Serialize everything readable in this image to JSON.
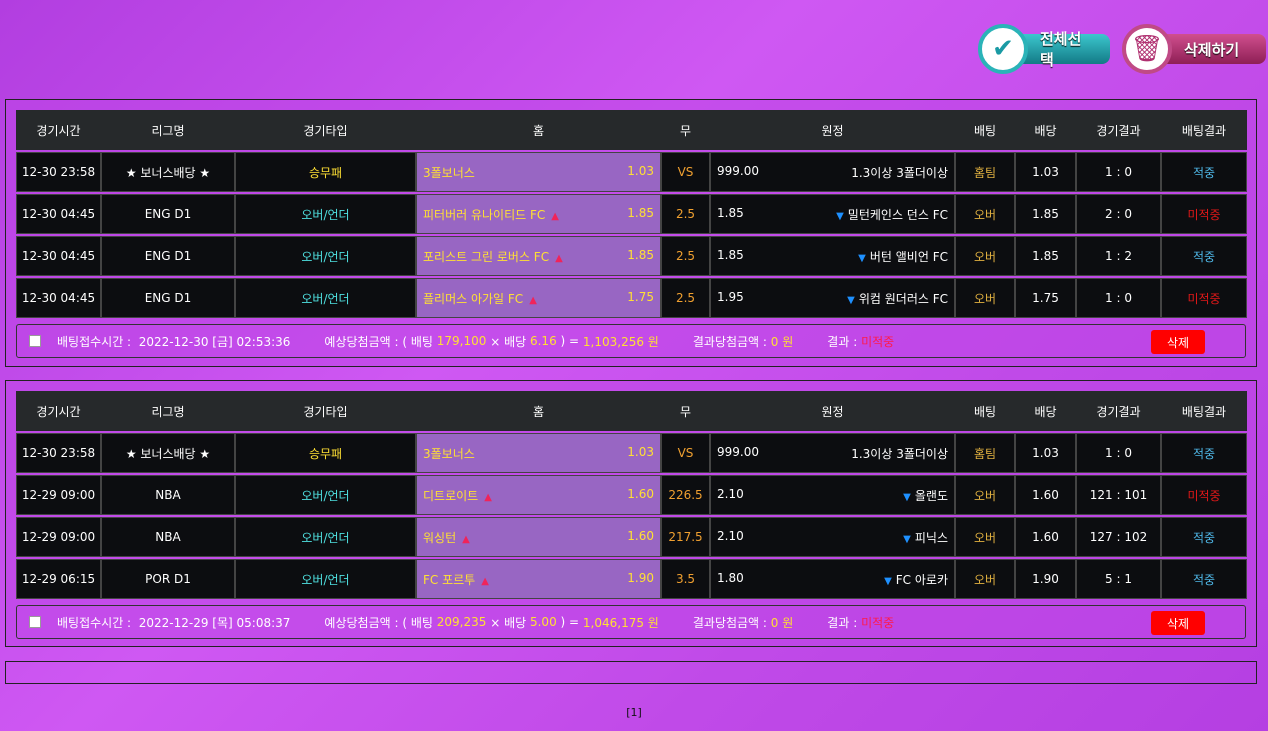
{
  "top_buttons": {
    "select_all": "전체선택",
    "delete_all": "삭제하기",
    "select_icon": "check-icon",
    "delete_icon": "trash-icon"
  },
  "headers": [
    "경기시간",
    "리그명",
    "경기타입",
    "홈",
    "무",
    "원정",
    "배팅",
    "배당",
    "경기결과",
    "배팅결과"
  ],
  "slips": [
    {
      "rows": [
        {
          "time": "12-30 23:58",
          "league": "★ 보너스배당 ★",
          "type": "승무패",
          "home": "3폴보너스",
          "home_odds": "1.03",
          "draw": "VS",
          "away_odds": "999.00",
          "away": "1.3이상 3폴더이상",
          "bet": "홈팀",
          "odds": "1.03",
          "score": "1 : 0",
          "result": "적중",
          "arrows": false
        },
        {
          "time": "12-30 04:45",
          "league": "ENG D1",
          "type": "오버/언더",
          "home": "피터버러 유나이티드 FC",
          "home_odds": "1.85",
          "draw": "2.5",
          "away_odds": "1.85",
          "away": "밀턴케인스 던스 FC",
          "bet": "오버",
          "odds": "1.85",
          "score": "2 : 0",
          "result": "미적중",
          "arrows": true
        },
        {
          "time": "12-30 04:45",
          "league": "ENG D1",
          "type": "오버/언더",
          "home": "포리스트 그린 로버스 FC",
          "home_odds": "1.85",
          "draw": "2.5",
          "away_odds": "1.85",
          "away": "버턴 앨비언 FC",
          "bet": "오버",
          "odds": "1.85",
          "score": "1 : 2",
          "result": "적중",
          "arrows": true
        },
        {
          "time": "12-30 04:45",
          "league": "ENG D1",
          "type": "오버/언더",
          "home": "플리머스 아가일 FC",
          "home_odds": "1.75",
          "draw": "2.5",
          "away_odds": "1.95",
          "away": "위컴 원더러스 FC",
          "bet": "오버",
          "odds": "1.75",
          "score": "1 : 0",
          "result": "미적중",
          "arrows": true
        }
      ],
      "footer": {
        "time_label": "배팅접수시간 :",
        "time": "2022-12-30 [금] 02:53:36",
        "expected_label": "예상당첨금액 : ( 배팅",
        "stake": "179,100",
        "times": "× 배당",
        "total_odds": "6.16",
        "eq": ") =",
        "payout": "1,103,256 원",
        "won_label": "결과당첨금액 :",
        "won": "0 원",
        "result_label": "결과 :",
        "result": "미적중",
        "delete": "삭제"
      }
    },
    {
      "rows": [
        {
          "time": "12-30 23:58",
          "league": "★ 보너스배당 ★",
          "type": "승무패",
          "home": "3폴보너스",
          "home_odds": "1.03",
          "draw": "VS",
          "away_odds": "999.00",
          "away": "1.3이상 3폴더이상",
          "bet": "홈팀",
          "odds": "1.03",
          "score": "1 : 0",
          "result": "적중",
          "arrows": false
        },
        {
          "time": "12-29 09:00",
          "league": "NBA",
          "type": "오버/언더",
          "home": "디트로이트",
          "home_odds": "1.60",
          "draw": "226.5",
          "away_odds": "2.10",
          "away": "올랜도",
          "bet": "오버",
          "odds": "1.60",
          "score": "121 : 101",
          "result": "미적중",
          "arrows": true
        },
        {
          "time": "12-29 09:00",
          "league": "NBA",
          "type": "오버/언더",
          "home": "워싱턴",
          "home_odds": "1.60",
          "draw": "217.5",
          "away_odds": "2.10",
          "away": "피닉스",
          "bet": "오버",
          "odds": "1.60",
          "score": "127 : 102",
          "result": "적중",
          "arrows": true
        },
        {
          "time": "12-29 06:15",
          "league": "POR D1",
          "type": "오버/언더",
          "home": "FC 포르투",
          "home_odds": "1.90",
          "draw": "3.5",
          "away_odds": "1.80",
          "away": "FC 아로카",
          "bet": "오버",
          "odds": "1.90",
          "score": "5 : 1",
          "result": "적중",
          "arrows": true
        }
      ],
      "footer": {
        "time_label": "배팅접수시간 :",
        "time": "2022-12-29 [목] 05:08:37",
        "expected_label": "예상당첨금액 : ( 배팅",
        "stake": "209,235",
        "times": "× 배당",
        "total_odds": "5.00",
        "eq": ") =",
        "payout": "1,046,175 원",
        "won_label": "결과당첨금액 :",
        "won": "0 원",
        "result_label": "결과 :",
        "result": "미적중",
        "delete": "삭제"
      }
    }
  ],
  "pager": "[1]"
}
